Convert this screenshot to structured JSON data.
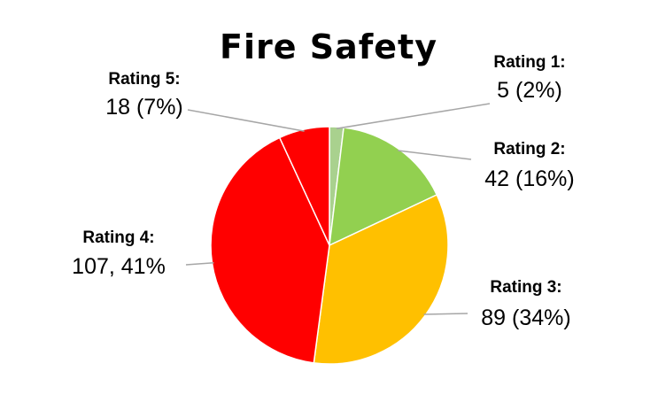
{
  "chart_data": {
    "type": "pie",
    "title": "Fire Safety",
    "slices": [
      {
        "category": "Rating 1:",
        "value": 5,
        "label": "5 (2%)",
        "color": "#A9D18E"
      },
      {
        "category": "Rating 2:",
        "value": 42,
        "label": "42 (16%)",
        "color": "#92D050"
      },
      {
        "category": "Rating 3:",
        "value": 89,
        "label": "89 (34%)",
        "color": "#FFC000"
      },
      {
        "category": "Rating 4:",
        "value": 107,
        "label": "107, 41%",
        "color": "#FF0000"
      },
      {
        "category": "Rating 5:",
        "value": 18,
        "label": "18 (7%)",
        "color": "#FF0000"
      }
    ],
    "start_angle_deg": 0,
    "direction": "clockwise",
    "slice_border_color": "#FFFFFF",
    "leader_line_color": "#A6A6A6"
  }
}
